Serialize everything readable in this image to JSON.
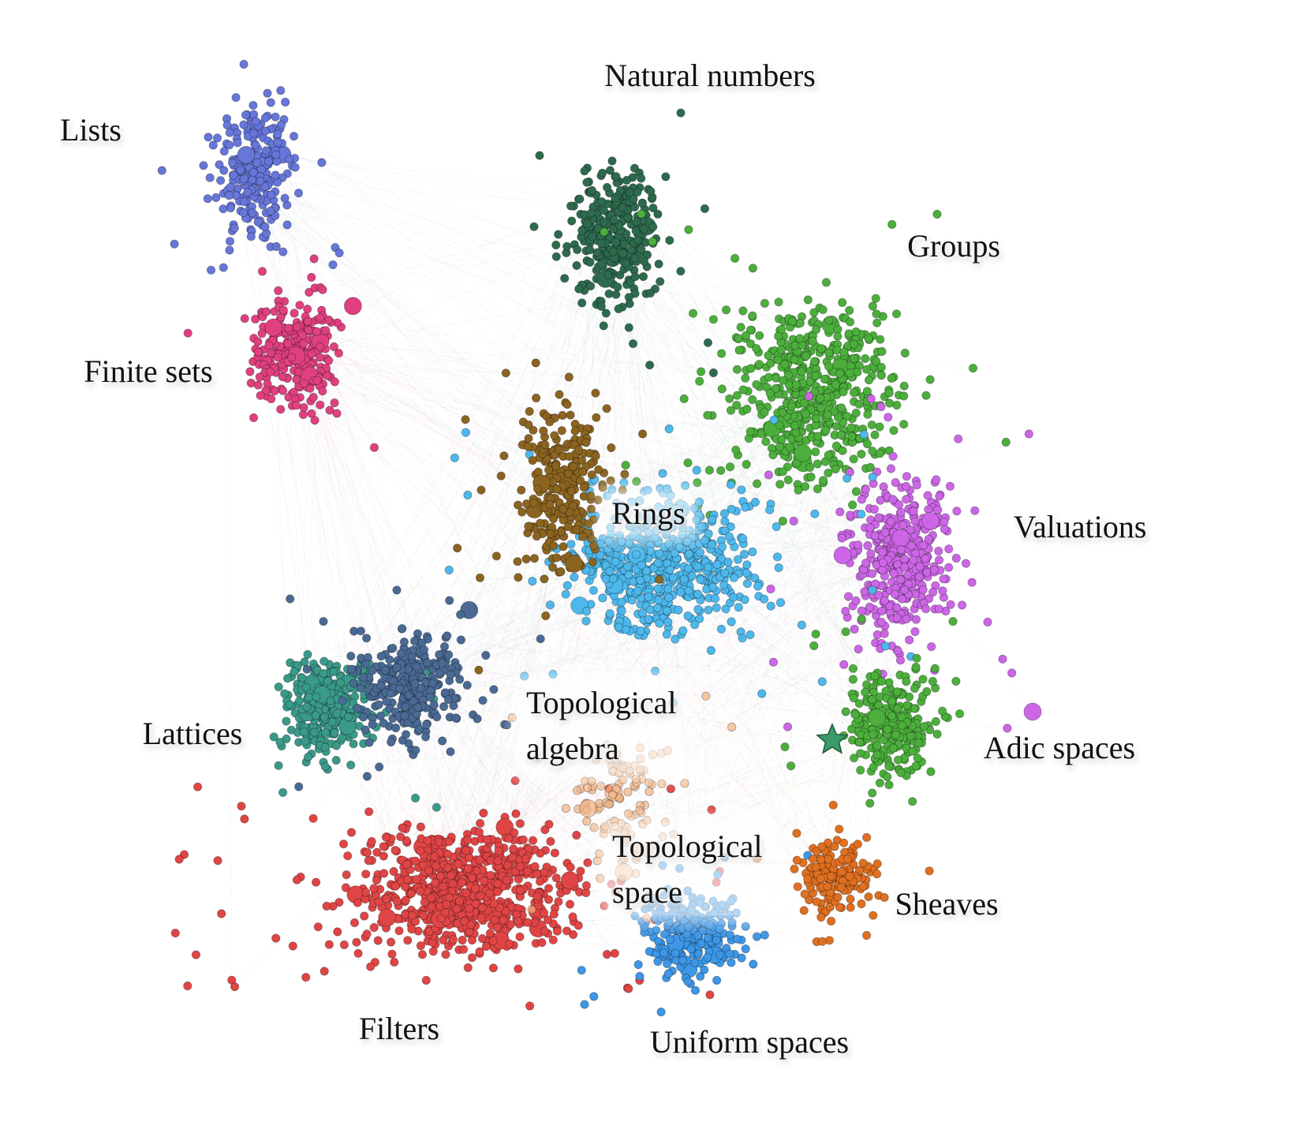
{
  "clusters": [
    {
      "id": "lists",
      "label": "Lists",
      "color": "#6676d9"
    },
    {
      "id": "finite_sets",
      "label": "Finite sets",
      "color": "#e0407f"
    },
    {
      "id": "natural_numbers",
      "label": "Natural numbers",
      "color": "#2e6b4e"
    },
    {
      "id": "groups",
      "label": "Groups",
      "color": "#4caf3c"
    },
    {
      "id": "valuations",
      "label": "Valuations",
      "color": "#cc66e6"
    },
    {
      "id": "rings",
      "label": "Rings",
      "color": "#4db8ec"
    },
    {
      "id": "topological_algebra",
      "label": "Topological algebra",
      "color": "#8b6420"
    },
    {
      "id": "lattices",
      "label": "Lattices",
      "color": "#3a9a8a"
    },
    {
      "id": "lattices_b",
      "label": "",
      "color": "#4a6a94"
    },
    {
      "id": "filters",
      "label": "Filters",
      "color": "#e04545"
    },
    {
      "id": "uniform_spaces",
      "label": "Uniform spaces",
      "color": "#3d96e6"
    },
    {
      "id": "sheaves",
      "label": "Sheaves",
      "color": "#e07020"
    },
    {
      "id": "adic_spaces",
      "label": "Adic spaces",
      "color": "#4caf3c"
    },
    {
      "id": "topological_space",
      "label": "Topological space",
      "color": "#f0b080"
    }
  ],
  "labels": {
    "natural_numbers": "Natural numbers",
    "lists": "Lists",
    "groups": "Groups",
    "finite_sets": "Finite sets",
    "rings": "Rings",
    "valuations": "Valuations",
    "topological_algebra_1": "Topological",
    "topological_algebra_2": "algebra",
    "lattices": "Lattices",
    "adic_spaces": "Adic spaces",
    "topological_space_1": "Topological",
    "topological_space_2": "space",
    "sheaves": "Sheaves",
    "filters": "Filters",
    "uniform_spaces": "Uniform spaces"
  },
  "highlight": {
    "shape": "star",
    "color": "#3a9a6a",
    "cluster": "adic_spaces"
  }
}
